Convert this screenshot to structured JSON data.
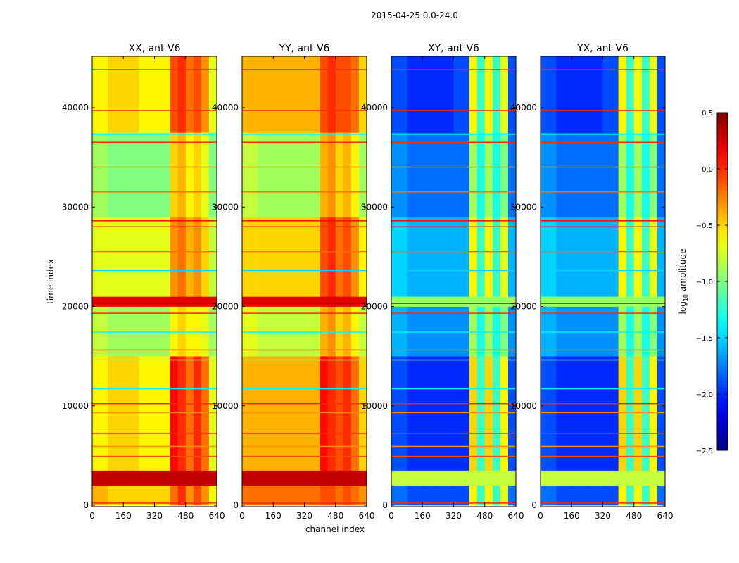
{
  "chart_data": {
    "type": "heatmap",
    "suptitle": "2015-04-25 0.0-24.0",
    "xlabel": "channel index",
    "ylabel": "time index",
    "xlim": [
      0,
      640
    ],
    "ylim": [
      0,
      45170
    ],
    "xticks": [
      0,
      160,
      320,
      480,
      640
    ],
    "yticks": [
      0,
      10000,
      20000,
      30000,
      40000
    ],
    "colorbar": {
      "label": "log10 amplitude",
      "label_main": "log",
      "label_sub": "10",
      "label_rest": " amplitude",
      "range": [
        -2.5,
        0.5
      ],
      "ticks": [
        "0.5",
        "0.0",
        "−0.5",
        "−1.0",
        "−1.5",
        "−2.0",
        "−2.5"
      ],
      "tick_values": [
        0.5,
        0.0,
        -0.5,
        -1.0,
        -1.5,
        -2.0,
        -2.5
      ],
      "colormap": "jet"
    },
    "time_bands": [
      0,
      2000,
      3500,
      15000,
      20000,
      21000,
      29000,
      37500,
      45170
    ],
    "channel_bands": [
      0,
      80,
      160,
      240,
      320,
      400,
      440,
      480,
      520,
      560,
      600,
      640
    ],
    "panels": [
      {
        "title": "XX, ant V6",
        "values": [
          [
            -0.4,
            -0.5,
            -0.5,
            -0.5,
            -0.5,
            -0.2,
            0.0,
            -0.3,
            -0.1,
            -0.3,
            -0.6
          ],
          [
            0.3,
            0.3,
            0.3,
            0.3,
            0.3,
            0.3,
            0.3,
            0.3,
            0.3,
            0.3,
            0.3
          ],
          [
            -0.6,
            -0.5,
            -0.5,
            -0.6,
            -0.6,
            0.1,
            0.0,
            -0.2,
            0.0,
            -0.2,
            -0.7
          ],
          [
            -0.8,
            -0.9,
            -0.9,
            -0.9,
            -0.9,
            -0.6,
            -0.5,
            -0.6,
            -0.6,
            -0.7,
            -0.9
          ],
          [
            0.2,
            0.2,
            0.2,
            0.2,
            0.2,
            0.2,
            0.2,
            0.2,
            0.2,
            0.2,
            0.2
          ],
          [
            -0.7,
            -0.7,
            -0.7,
            -0.7,
            -0.7,
            -0.3,
            -0.2,
            -0.4,
            -0.3,
            -0.5,
            -0.8
          ],
          [
            -0.9,
            -1.0,
            -1.0,
            -1.0,
            -1.0,
            -0.5,
            -0.4,
            -0.6,
            -0.5,
            -0.7,
            -1.0
          ],
          [
            -0.6,
            -0.5,
            -0.5,
            -0.6,
            -0.6,
            -0.1,
            0.0,
            -0.2,
            -0.1,
            -0.3,
            -0.7
          ]
        ]
      },
      {
        "title": "YY, ant V6",
        "values": [
          [
            -0.2,
            -0.2,
            -0.2,
            -0.2,
            -0.2,
            -0.1,
            -0.1,
            -0.2,
            -0.1,
            -0.2,
            -0.3
          ],
          [
            0.3,
            0.3,
            0.3,
            0.3,
            0.3,
            0.3,
            0.3,
            0.3,
            0.3,
            0.3,
            0.3
          ],
          [
            -0.4,
            -0.4,
            -0.4,
            -0.4,
            -0.4,
            0.1,
            0.0,
            -0.1,
            0.0,
            -0.2,
            -0.5
          ],
          [
            -0.7,
            -0.8,
            -0.8,
            -0.8,
            -0.8,
            -0.4,
            -0.3,
            -0.5,
            -0.4,
            -0.6,
            -0.8
          ],
          [
            0.2,
            0.2,
            0.2,
            0.2,
            0.2,
            0.2,
            0.2,
            0.2,
            0.2,
            0.2,
            0.2
          ],
          [
            -0.5,
            -0.5,
            -0.5,
            -0.5,
            -0.5,
            -0.1,
            0.0,
            -0.2,
            -0.1,
            -0.3,
            -0.6
          ],
          [
            -0.8,
            -0.9,
            -0.9,
            -0.9,
            -0.9,
            -0.4,
            -0.3,
            -0.5,
            -0.4,
            -0.6,
            -0.9
          ],
          [
            -0.4,
            -0.4,
            -0.4,
            -0.4,
            -0.4,
            -0.1,
            0.0,
            -0.1,
            -0.1,
            -0.2,
            -0.5
          ]
        ]
      },
      {
        "title": "XY, ant V6",
        "values": [
          [
            -1.8,
            -1.9,
            -1.9,
            -1.9,
            -1.9,
            -0.6,
            -1.2,
            -0.6,
            -1.2,
            -0.7,
            -1.8
          ],
          [
            -0.8,
            -0.8,
            -0.8,
            -0.8,
            -0.8,
            -0.8,
            -0.8,
            -0.8,
            -0.8,
            -0.8,
            -0.8
          ],
          [
            -1.9,
            -2.0,
            -2.0,
            -2.0,
            -2.0,
            -0.5,
            -1.2,
            -0.5,
            -1.2,
            -0.6,
            -1.9
          ],
          [
            -1.6,
            -1.7,
            -1.7,
            -1.7,
            -1.7,
            -0.9,
            -1.3,
            -0.9,
            -1.3,
            -1.0,
            -1.7
          ],
          [
            -0.9,
            -0.9,
            -0.9,
            -0.9,
            -0.9,
            -0.9,
            -0.9,
            -0.9,
            -0.9,
            -0.9,
            -0.9
          ],
          [
            -1.5,
            -1.6,
            -1.6,
            -1.6,
            -1.6,
            -0.6,
            -1.2,
            -0.6,
            -1.2,
            -0.7,
            -1.6
          ],
          [
            -1.7,
            -1.8,
            -1.8,
            -1.8,
            -1.8,
            -0.9,
            -1.3,
            -0.9,
            -1.3,
            -1.0,
            -1.8
          ],
          [
            -1.9,
            -2.0,
            -2.0,
            -2.0,
            -1.9,
            -0.6,
            -1.2,
            -0.6,
            -1.2,
            -0.7,
            -1.9
          ]
        ]
      },
      {
        "title": "YX, ant V6",
        "values": [
          [
            -1.8,
            -1.9,
            -1.9,
            -1.9,
            -1.9,
            -0.6,
            -1.2,
            -0.6,
            -1.2,
            -0.7,
            -1.8
          ],
          [
            -0.8,
            -0.8,
            -0.8,
            -0.8,
            -0.8,
            -0.8,
            -0.8,
            -0.8,
            -0.8,
            -0.8,
            -0.8
          ],
          [
            -1.9,
            -2.0,
            -2.0,
            -2.0,
            -2.0,
            -0.5,
            -1.2,
            -0.5,
            -1.2,
            -0.6,
            -1.9
          ],
          [
            -1.6,
            -1.7,
            -1.7,
            -1.7,
            -1.7,
            -0.9,
            -1.3,
            -0.9,
            -1.3,
            -1.0,
            -1.7
          ],
          [
            -0.9,
            -0.9,
            -0.9,
            -0.9,
            -0.9,
            -0.9,
            -0.9,
            -0.9,
            -0.9,
            -0.9,
            -0.9
          ],
          [
            -1.5,
            -1.6,
            -1.6,
            -1.6,
            -1.6,
            -0.6,
            -1.2,
            -0.6,
            -1.2,
            -0.7,
            -1.6
          ],
          [
            -1.7,
            -1.8,
            -1.8,
            -1.8,
            -1.8,
            -0.9,
            -1.3,
            -0.9,
            -1.3,
            -1.0,
            -1.8
          ],
          [
            -1.9,
            -2.0,
            -2.0,
            -2.0,
            -1.9,
            -0.6,
            -1.2,
            -0.6,
            -1.2,
            -0.7,
            -1.9
          ]
        ]
      }
    ],
    "horizontal_lines": [
      {
        "time": 43800,
        "value": 0.0
      },
      {
        "time": 39700,
        "value": 0.0
      },
      {
        "time": 37300,
        "value": -1.4
      },
      {
        "time": 36500,
        "value": 0.0
      },
      {
        "time": 34000,
        "value": -0.3
      },
      {
        "time": 31500,
        "value": -0.2
      },
      {
        "time": 28600,
        "value": 0.1
      },
      {
        "time": 28000,
        "value": 0.0
      },
      {
        "time": 25500,
        "value": -0.2
      },
      {
        "time": 23600,
        "value": -1.5
      },
      {
        "time": 20300,
        "value": 0.3
      },
      {
        "time": 19300,
        "value": 0.0
      },
      {
        "time": 17400,
        "value": -1.4
      },
      {
        "time": 15600,
        "value": -0.2
      },
      {
        "time": 14600,
        "value": -1.0
      },
      {
        "time": 11700,
        "value": -1.4
      },
      {
        "time": 10200,
        "value": 0.0
      },
      {
        "time": 9300,
        "value": -0.3
      },
      {
        "time": 7200,
        "value": 0.0
      },
      {
        "time": 5900,
        "value": -0.3
      },
      {
        "time": 4900,
        "value": -0.1
      },
      {
        "time": 200,
        "value": 0.0
      }
    ]
  }
}
